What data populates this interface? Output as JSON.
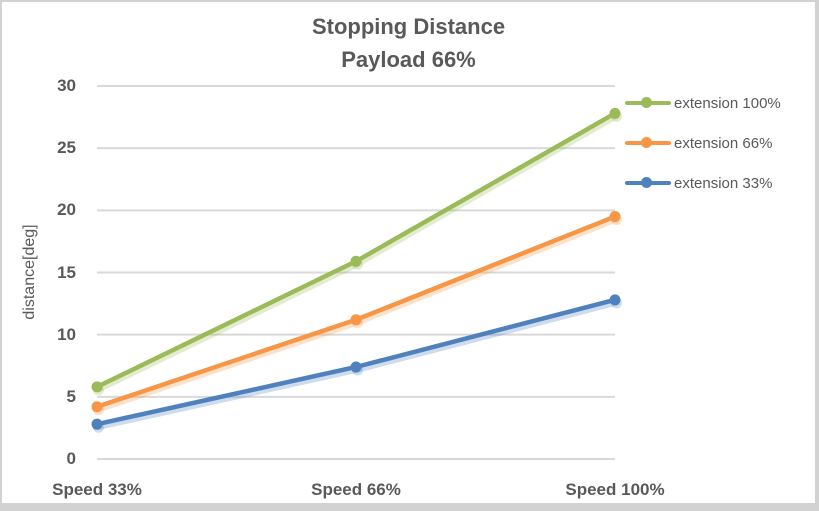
{
  "title": {
    "line1": "Stopping Distance",
    "line2": "Payload 66%"
  },
  "chart_data": {
    "type": "line",
    "title": "Stopping Distance Payload 66%",
    "categories": [
      "Speed 33%",
      "Speed 66%",
      "Speed 100%"
    ],
    "series": [
      {
        "name": "extension 100%",
        "color": "#9BBB59",
        "values": [
          5.8,
          15.9,
          27.8
        ]
      },
      {
        "name": "extension 66%",
        "color": "#F79646",
        "values": [
          4.2,
          11.2,
          19.5
        ]
      },
      {
        "name": "extension 33%",
        "color": "#4F81BD",
        "values": [
          2.8,
          7.4,
          12.8
        ]
      }
    ],
    "xlabel": "",
    "ylabel": "distance[deg]",
    "ylim": [
      0,
      30
    ],
    "yticks": [
      0,
      5,
      10,
      15,
      20,
      25,
      30
    ],
    "grid": true,
    "gridline_color": "#D9D9D9",
    "text_color": "#595959",
    "legend_position": "right",
    "marker": "circle"
  }
}
